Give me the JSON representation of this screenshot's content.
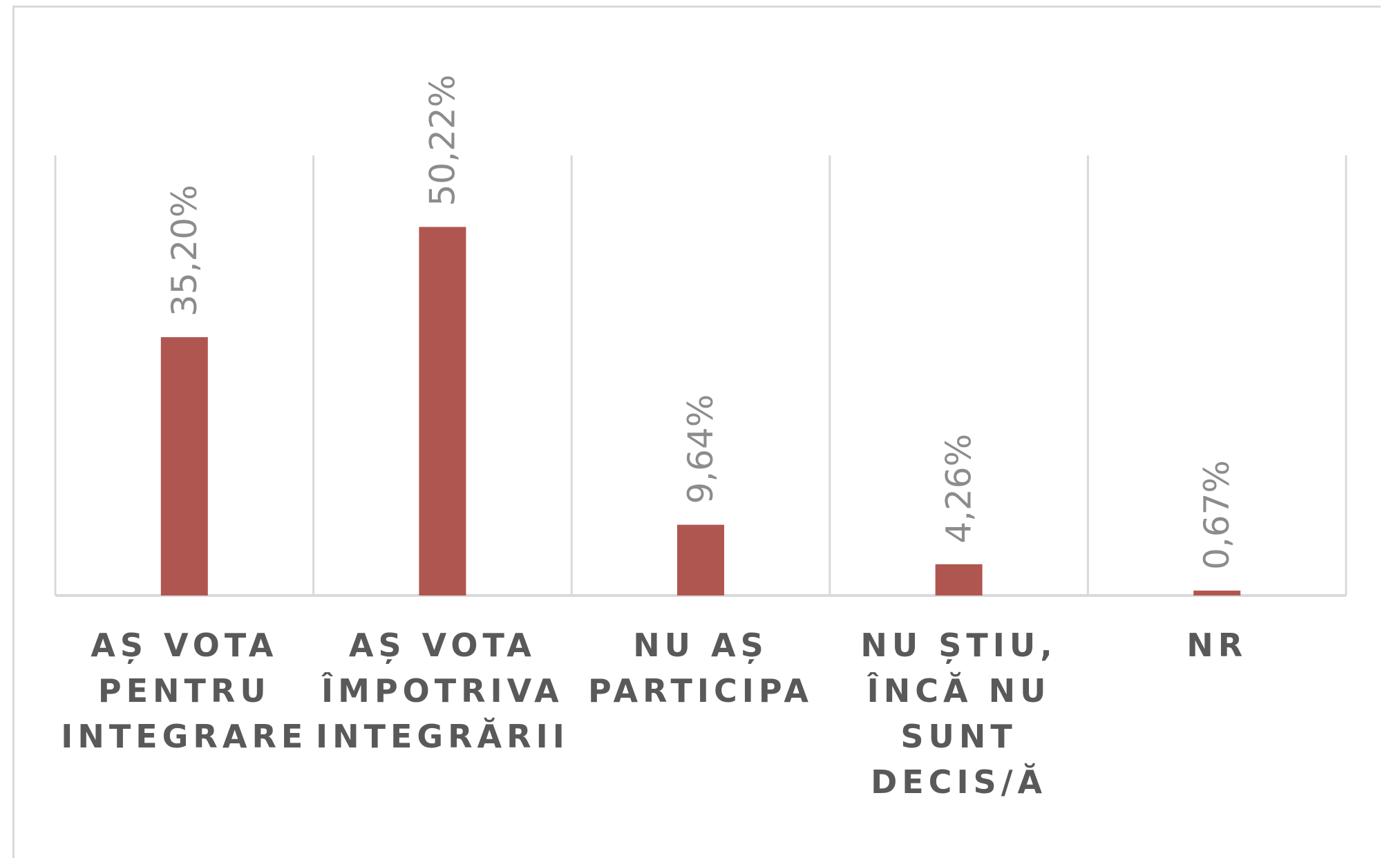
{
  "chart_data": {
    "type": "bar",
    "categories": [
      [
        "AȘ VOTA",
        "PENTRU",
        "INTEGRARE"
      ],
      [
        "AȘ VOTA",
        "ÎMPOTRIVA",
        "INTEGRĂRII"
      ],
      [
        "NU AȘ",
        "PARTICIPA"
      ],
      [
        "NU ȘTIU,",
        "ÎNCĂ NU",
        "SUNT",
        "DECIS/Ă"
      ],
      [
        "NR"
      ]
    ],
    "values": [
      35.2,
      50.22,
      9.64,
      4.26,
      0.67
    ],
    "data_labels": [
      "35,20%",
      "50,22%",
      "9,64%",
      "4,26%",
      "0,67%"
    ],
    "title": "",
    "xlabel": "",
    "ylabel": "",
    "ylim": [
      0,
      60
    ],
    "grid": "vertical",
    "legend": "none",
    "bar_color": "#b05651"
  }
}
